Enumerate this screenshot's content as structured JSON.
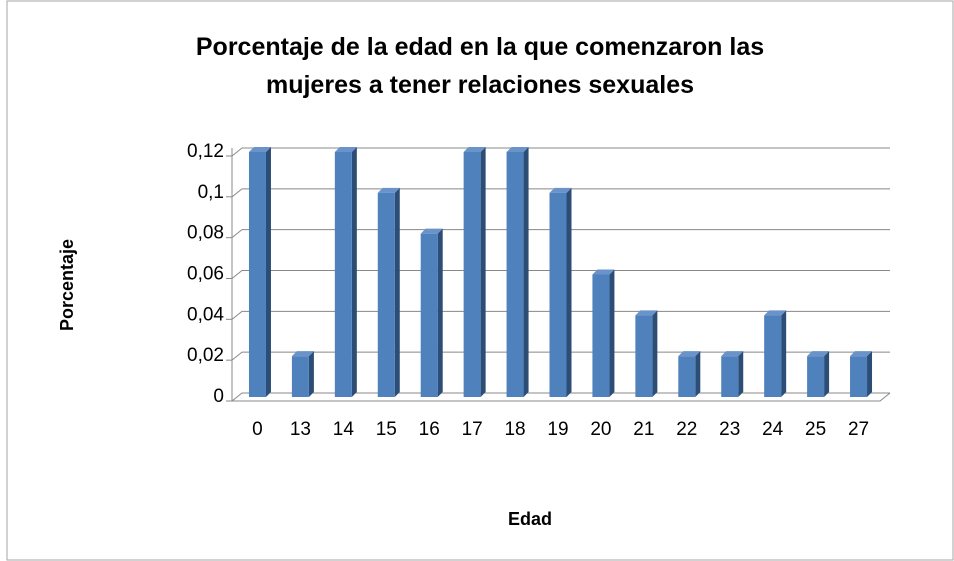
{
  "chart_data": {
    "type": "bar",
    "title": "Porcentaje de la edad en la que comenzaron las mujeres a tener relaciones sexuales",
    "x_label": "Edad",
    "y_label": "Porcentaje",
    "categories": [
      "0",
      "13",
      "14",
      "15",
      "16",
      "17",
      "18",
      "19",
      "20",
      "21",
      "22",
      "23",
      "24",
      "25",
      "27"
    ],
    "values": [
      0.12,
      0.02,
      0.12,
      0.1,
      0.08,
      0.12,
      0.12,
      0.1,
      0.06,
      0.04,
      0.02,
      0.02,
      0.04,
      0.02,
      0.02
    ],
    "color": "#4f81bd",
    "ylim": [
      0,
      0.12
    ],
    "yticks": [
      0,
      {
        "value": 0.02,
        "label": "0,02"
      },
      {
        "value": 0.04,
        "label": "0,04"
      },
      {
        "value": 0.06,
        "label": "0,06"
      },
      {
        "value": 0.08,
        "label": "0,08"
      },
      {
        "value": 0.1,
        "label": "0,1"
      },
      {
        "value": 0.12,
        "label": "0,12"
      }
    ],
    "grid": true
  }
}
